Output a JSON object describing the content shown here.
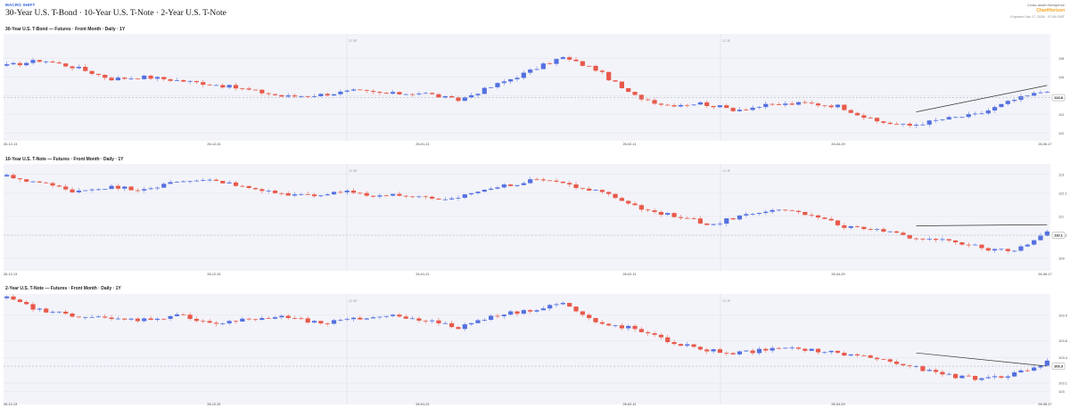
{
  "header": {
    "brand": "MACRO SHIFT",
    "title": "30-Year U.S. T-Bond · 10-Year U.S. T-Note · 2-Year U.S. T-Note",
    "cross_asset": "Cross-asset divergence",
    "chartlens": "ChartHorizon",
    "exported": "Exported Jan 17, 2026 · 07:08 GMT"
  },
  "colors": {
    "up": "#5470e0",
    "down": "#e8594a",
    "band": "#f3f4f9",
    "grid": "#e1e3ea",
    "last_line": "#b0b4c0",
    "trend": "#333333"
  },
  "chart_data": [
    {
      "type": "candlestick",
      "title": "30-Year U.S. T-Bond  —  Futures · Front Month · Daily · 1Y",
      "x_ticks": [
        "26-12-13",
        "26-12-31",
        "26-01-21",
        "26-02-11",
        "26-04-29",
        "26-06-17"
      ],
      "event_labels": [
        "22 SE",
        "12 JE"
      ],
      "y_ticks": [
        118,
        116,
        114,
        112,
        110
      ],
      "ylim": [
        109.2,
        120.6
      ],
      "last_price": 113.8,
      "trend_end": 115.1,
      "start": 117.2,
      "anchors": [
        117.2,
        117.8,
        117.0,
        115.8,
        116.0,
        115.6,
        115.2,
        114.6,
        113.9,
        114.1,
        114.5,
        114.2,
        114.3,
        113.5,
        115.0,
        116.5,
        118.1,
        116.8,
        114.1,
        113.0,
        113.2,
        112.5,
        113.0,
        113.2,
        112.9,
        111.3,
        110.8,
        111.5,
        112.0,
        113.5,
        114.6
      ]
    },
    {
      "type": "candlestick",
      "title": "10-Year U.S. T-Note  —  Futures · Front Month · Daily · 1Y",
      "x_ticks": [
        "26-12-13",
        "26-12-31",
        "26-01-21",
        "26-02-11",
        "26-04-29",
        "26-06-17"
      ],
      "event_labels": [
        "22 SE",
        "12 JE"
      ],
      "y_ticks": [
        113,
        112.1,
        111,
        110.1,
        109
      ],
      "ylim": [
        108.4,
        113.5
      ],
      "last_price": 110.1,
      "trend_end": 110.6,
      "start": 112.9,
      "anchors": [
        112.9,
        112.6,
        112.2,
        112.4,
        112.3,
        112.6,
        112.8,
        112.4,
        112.1,
        112.0,
        112.2,
        112.0,
        112.0,
        111.7,
        112.2,
        112.5,
        112.8,
        112.4,
        112.0,
        111.3,
        111.0,
        110.6,
        111.1,
        111.4,
        111.0,
        110.5,
        110.3,
        110.0,
        109.9,
        109.5,
        109.3,
        110.2
      ]
    },
    {
      "type": "candlestick",
      "title": "2-Year U.S. T-Note  —  Futures · Front Month · Daily · 1Y",
      "x_ticks": [
        "26-12-13",
        "26-12-31",
        "26-01-21",
        "26-02-11",
        "26-04-29",
        "26-06-17"
      ],
      "event_labels": [
        "22 SE",
        "12 JE"
      ],
      "y_ticks": [
        103.9,
        103.6,
        103.4,
        103.1,
        103.0
      ],
      "ylim": [
        102.85,
        104.15
      ],
      "last_price": 103.3,
      "trend_end": 103.3,
      "start": 104.1,
      "anchors": [
        104.1,
        103.95,
        103.9,
        103.85,
        103.85,
        103.9,
        103.8,
        103.85,
        103.88,
        103.8,
        103.85,
        103.9,
        103.85,
        103.75,
        103.9,
        103.95,
        104.05,
        103.8,
        103.75,
        103.6,
        103.5,
        103.45,
        103.5,
        103.5,
        103.45,
        103.4,
        103.3,
        103.2,
        103.15,
        103.2,
        103.35
      ]
    }
  ]
}
